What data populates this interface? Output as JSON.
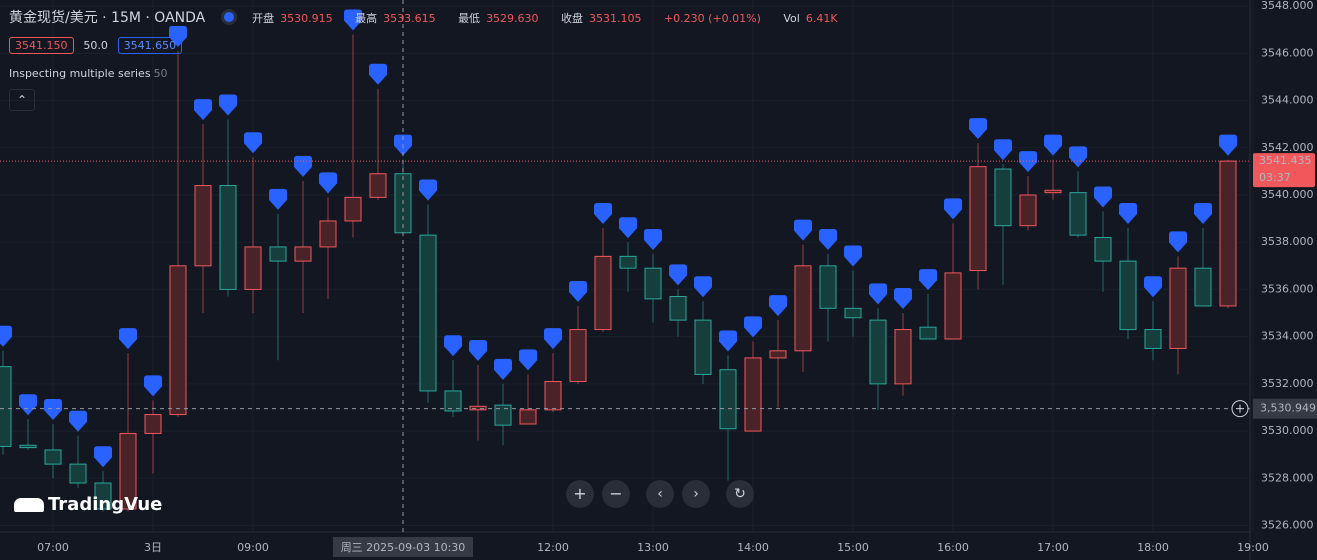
{
  "chart_data": {
    "type": "candlestick",
    "title": "黄金现货/美元 · 15M · OANDA",
    "ohlc": {
      "labels": [
        "开盘",
        "最高",
        "最低",
        "收盘"
      ],
      "values": [
        "3530.915",
        "3533.615",
        "3529.630",
        "3531.105"
      ],
      "change": "+0.230 (+0.01%)",
      "vol_label": "Vol",
      "vol": "6.41K"
    },
    "quotes": {
      "bid": "3541.150",
      "spread": "50.0",
      "ask": "3541.650"
    },
    "overlay": {
      "name": "Inspecting multiple series",
      "length": "50"
    },
    "logo": "TradingVue",
    "up_color": "#f0585c",
    "down_color": "#2aa89b",
    "marker_color": "#2962ff",
    "open": [
      3532.73,
      3529.4,
      3529.2,
      3528.6,
      3527.8,
      3526.7,
      3529.9,
      3530.7,
      3537.0,
      3540.4,
      3536.0,
      3537.8,
      3537.2,
      3537.8,
      3538.9,
      3539.9,
      3540.9,
      3538.3,
      3531.7,
      3530.9,
      3531.1,
      3530.3,
      3530.9,
      3532.1,
      3534.3,
      3537.4,
      3536.9,
      3535.7,
      3534.7,
      3532.6,
      3530.0,
      3533.1,
      3533.4,
      3537.0,
      3535.2,
      3534.7,
      3532.0,
      3534.4,
      3533.9,
      3536.8,
      3541.1,
      3538.7,
      3540.1,
      3540.1,
      3538.2,
      3537.2,
      3534.3,
      3533.5,
      3536.9,
      3535.3
    ],
    "high": [
      3533.4,
      3530.5,
      3530.3,
      3529.8,
      3528.3,
      3533.3,
      3531.3,
      3546.1,
      3543.0,
      3543.2,
      3541.6,
      3539.2,
      3540.6,
      3539.9,
      3546.8,
      3544.5,
      3541.5,
      3539.6,
      3533.0,
      3532.8,
      3532.0,
      3532.4,
      3533.3,
      3535.3,
      3538.6,
      3538.0,
      3537.5,
      3536.0,
      3535.5,
      3533.2,
      3533.8,
      3534.7,
      3537.9,
      3537.5,
      3536.8,
      3535.2,
      3535.0,
      3535.8,
      3538.8,
      3542.2,
      3541.3,
      3540.8,
      3541.5,
      3541.0,
      3539.3,
      3538.6,
      3535.5,
      3537.4,
      3538.6,
      3541.5
    ],
    "low": [
      3529.0,
      3529.2,
      3528.0,
      3527.6,
      3526.6,
      3526.6,
      3528.2,
      3530.6,
      3535.0,
      3535.7,
      3535.0,
      3533.0,
      3535.0,
      3535.6,
      3538.2,
      3539.8,
      3538.3,
      3531.2,
      3530.6,
      3529.6,
      3529.4,
      3530.3,
      3530.8,
      3532.0,
      3534.2,
      3535.9,
      3534.6,
      3534.0,
      3532.0,
      3527.9,
      3530.0,
      3531.0,
      3532.5,
      3533.8,
      3534.0,
      3530.9,
      3531.5,
      3533.9,
      3533.9,
      3536.0,
      3536.2,
      3538.5,
      3539.8,
      3538.2,
      3535.9,
      3533.9,
      3533.0,
      3532.4,
      3535.3,
      3535.2
    ],
    "close": [
      3529.35,
      3529.3,
      3528.6,
      3527.8,
      3526.7,
      3529.9,
      3530.7,
      3537.0,
      3540.4,
      3536.0,
      3537.8,
      3537.2,
      3537.8,
      3538.9,
      3539.9,
      3540.9,
      3538.4,
      3531.7,
      3530.85,
      3531.05,
      3530.25,
      3530.9,
      3532.1,
      3534.3,
      3537.4,
      3536.9,
      3535.6,
      3534.7,
      3532.4,
      3530.1,
      3533.1,
      3533.4,
      3537.0,
      3535.2,
      3534.8,
      3532.0,
      3534.3,
      3533.9,
      3536.7,
      3541.2,
      3538.7,
      3540.0,
      3540.2,
      3538.3,
      3537.2,
      3534.3,
      3533.5,
      3536.9,
      3535.3,
      3541.435
    ],
    "xlim": [
      -0.12,
      49.88
    ],
    "xticks": [
      {
        "value": 2,
        "label": "07:00"
      },
      {
        "value": 6,
        "label": "3日"
      },
      {
        "value": 10,
        "label": "09:00"
      },
      {
        "value": 22,
        "label": "12:00"
      },
      {
        "value": 26,
        "label": "13:00"
      },
      {
        "value": 30,
        "label": "14:00"
      },
      {
        "value": 34,
        "label": "15:00"
      },
      {
        "value": 38,
        "label": "16:00"
      },
      {
        "value": 42,
        "label": "17:00"
      },
      {
        "value": 46,
        "label": "18:00"
      },
      {
        "value": 50,
        "label": "19:00"
      }
    ],
    "ylim": [
      3525.725,
      3548.26
    ],
    "yticks": [
      {
        "value": 3526,
        "label": "3526.000"
      },
      {
        "value": 3528,
        "label": "3528.000"
      },
      {
        "value": 3530,
        "label": "3530.000"
      },
      {
        "value": 3532,
        "label": "3532.000"
      },
      {
        "value": 3534,
        "label": "3534.000"
      },
      {
        "value": 3536,
        "label": "3536.000"
      },
      {
        "value": 3538,
        "label": "3538.000"
      },
      {
        "value": 3540,
        "label": "3540.000"
      },
      {
        "value": 3542,
        "label": "3542.000"
      },
      {
        "value": 3544,
        "label": "3544.000"
      },
      {
        "value": 3546,
        "label": "3546.000"
      },
      {
        "value": 3548,
        "label": "3548.000"
      }
    ],
    "grid": true,
    "last_price": {
      "value": 3541.435,
      "label": "3541.435",
      "countdown": "03:37"
    },
    "crosshair": {
      "x": 16,
      "y": 3530.949,
      "x_label": "周三 2025-09-03 10:30",
      "y_label": "3,530.949"
    }
  }
}
